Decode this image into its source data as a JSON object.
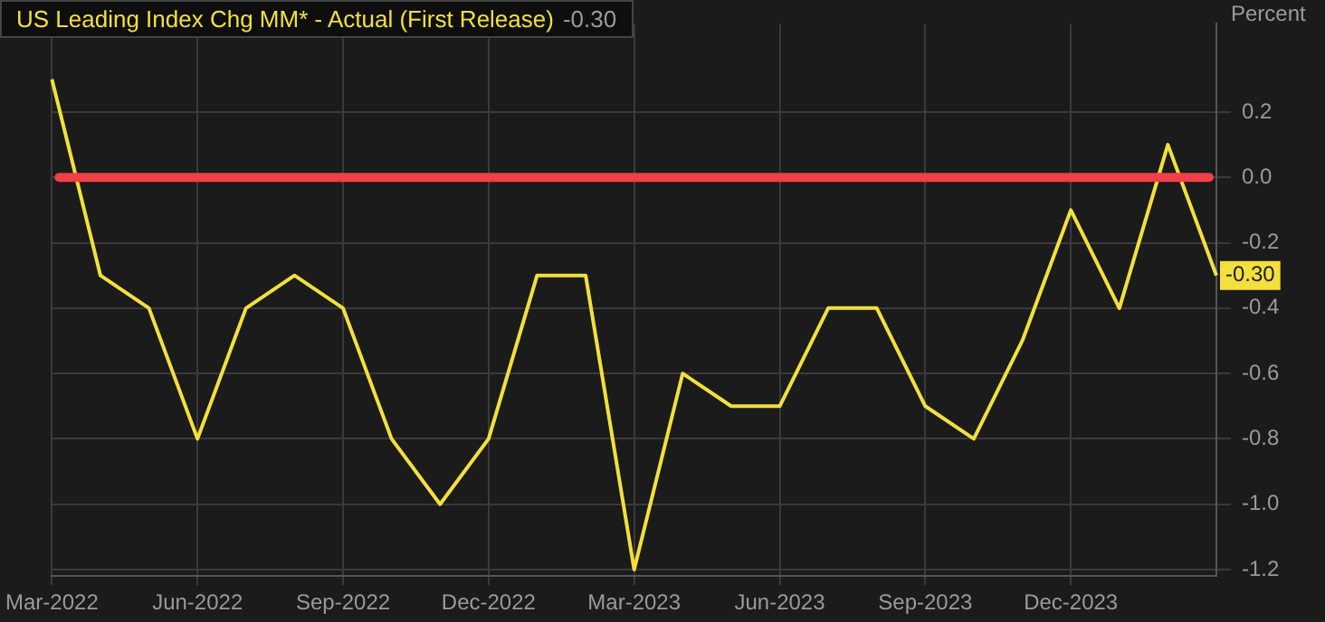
{
  "chart_data": {
    "type": "line",
    "categories": [
      "Mar-2022",
      null,
      null,
      "Jun-2022",
      null,
      null,
      "Sep-2022",
      null,
      null,
      "Dec-2022",
      null,
      null,
      "Mar-2023",
      null,
      null,
      "Jun-2023",
      null,
      null,
      "Sep-2023",
      null,
      null,
      "Dec-2023",
      null,
      null,
      null
    ],
    "series": [
      {
        "name": "US Leading Index Chg MM* - Actual (First Release)",
        "color": "#f2e03c",
        "values": [
          0.3,
          -0.3,
          -0.4,
          -0.8,
          -0.4,
          -0.3,
          -0.4,
          -0.8,
          -1.0,
          -0.8,
          -0.3,
          -0.3,
          -1.2,
          -0.6,
          -0.7,
          -0.7,
          -0.4,
          -0.4,
          -0.7,
          -0.8,
          -0.5,
          -0.1,
          -0.4,
          0.1,
          -0.3
        ]
      }
    ],
    "ylabel": "Percent",
    "ylim": [
      -1.22,
      0.47
    ],
    "yticks": [
      -1.2,
      {
        "value": -1,
        "label": "-1.0"
      },
      -0.8,
      -0.6,
      -0.4,
      -0.2,
      {
        "value": 0,
        "label": "0.0"
      },
      0.2
    ],
    "ref_lines": [
      {
        "axis": "y",
        "value": 0,
        "color": "#f04048"
      }
    ],
    "annotations": [
      "-0.30",
      {
        "text": "-0.30",
        "y": -0.3
      }
    ],
    "grid": true,
    "legend": "top left",
    "marker": "none",
    "line_style": "solid"
  }
}
